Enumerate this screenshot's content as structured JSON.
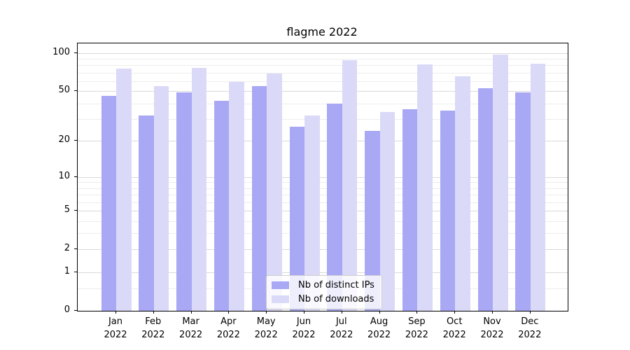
{
  "chart_data": {
    "type": "bar",
    "title": "flagme 2022",
    "categories": [
      "Jan 2022",
      "Feb 2022",
      "Mar 2022",
      "Apr 2022",
      "May 2022",
      "Jun 2022",
      "Jul 2022",
      "Aug 2022",
      "Sep 2022",
      "Oct 2022",
      "Nov 2022",
      "Dec 2022"
    ],
    "series": [
      {
        "name": "Nb of distinct IPs",
        "color": "#a8a8f5",
        "values": [
          46,
          32,
          49,
          42,
          55,
          26,
          40,
          24,
          36,
          35,
          53,
          49
        ]
      },
      {
        "name": "Nb of downloads",
        "color": "#dadaf8",
        "values": [
          75,
          55,
          76,
          59,
          69,
          32,
          88,
          34,
          81,
          66,
          97,
          82
        ]
      }
    ],
    "xlabel": "",
    "ylabel": "",
    "y_scale": "log1p",
    "y_ticks": [
      0,
      1,
      2,
      5,
      10,
      20,
      50,
      100
    ],
    "y_minor_gridlines": [
      0.5,
      3,
      4,
      6,
      7,
      8,
      9,
      30,
      40,
      60,
      70,
      80,
      90
    ],
    "ylim": [
      0,
      119
    ],
    "grid": true,
    "grid_major_color": "#d9d9d9",
    "grid_minor_color": "#ededed",
    "legend_position": "lower center",
    "legend_labels": [
      "Nb of distinct IPs",
      "Nb of downloads"
    ]
  }
}
